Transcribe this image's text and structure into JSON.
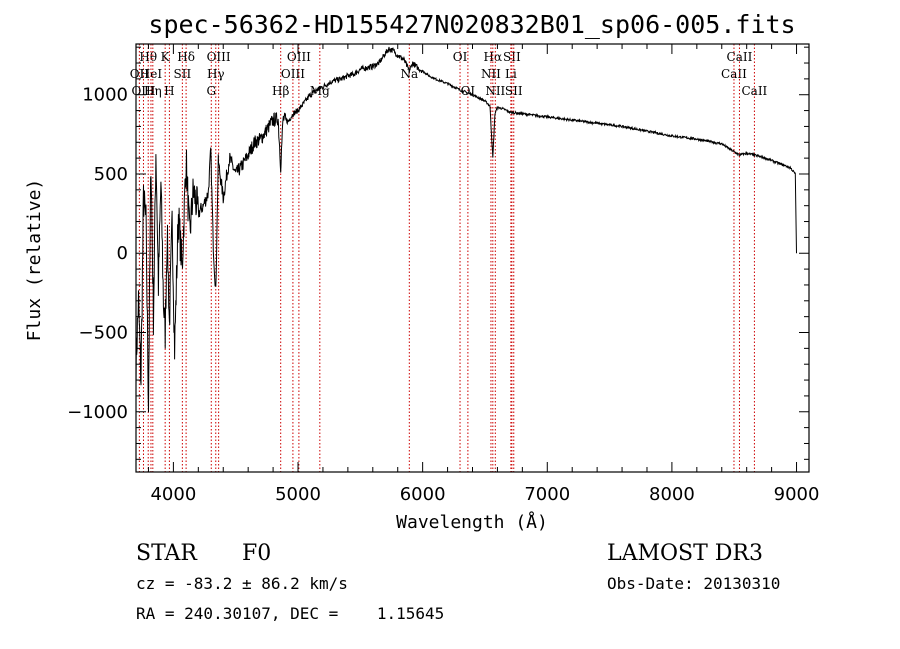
{
  "chart_data": {
    "type": "line",
    "title": "spec-56362-HD155427N020832B01_sp06-005.fits",
    "xlabel": "Wavelength (Å)",
    "ylabel": "Flux (relative)",
    "xlim": [
      3700,
      9100
    ],
    "ylim": [
      -1380,
      1320
    ],
    "xticks": [
      4000,
      5000,
      6000,
      7000,
      8000,
      9000
    ],
    "yticks": [
      -1000,
      -500,
      0,
      500,
      1000
    ],
    "spectrum_series": {
      "name": "flux",
      "x": [
        3700,
        3720,
        3740,
        3760,
        3780,
        3800,
        3820,
        3840,
        3860,
        3880,
        3900,
        3920,
        3934,
        3950,
        3968,
        3990,
        4010,
        4040,
        4070,
        4102,
        4130,
        4160,
        4200,
        4240,
        4280,
        4300,
        4320,
        4340,
        4360,
        4400,
        4450,
        4500,
        4550,
        4600,
        4650,
        4700,
        4750,
        4800,
        4840,
        4861,
        4880,
        4920,
        4960,
        5000,
        5050,
        5100,
        5150,
        5200,
        5260,
        5300,
        5350,
        5400,
        5450,
        5500,
        5550,
        5600,
        5650,
        5700,
        5730,
        5760,
        5800,
        5850,
        5893,
        5920,
        5960,
        6000,
        6050,
        6100,
        6200,
        6300,
        6400,
        6500,
        6540,
        6563,
        6580,
        6600,
        6650,
        6700,
        6800,
        6900,
        7000,
        7200,
        7400,
        7600,
        7800,
        8000,
        8200,
        8400,
        8498,
        8542,
        8600,
        8662,
        8750,
        8850,
        8950,
        8990,
        9000
      ],
      "values": [
        -700,
        -300,
        -800,
        350,
        200,
        -950,
        600,
        -400,
        650,
        -200,
        450,
        -300,
        -500,
        150,
        -450,
        200,
        -600,
        250,
        -100,
        600,
        100,
        400,
        250,
        300,
        380,
        650,
        50,
        -250,
        580,
        350,
        600,
        500,
        550,
        620,
        700,
        720,
        780,
        840,
        850,
        550,
        850,
        830,
        880,
        900,
        950,
        1000,
        1030,
        1050,
        1080,
        1090,
        1100,
        1120,
        1130,
        1160,
        1170,
        1180,
        1200,
        1260,
        1290,
        1280,
        1250,
        1220,
        1150,
        1200,
        1170,
        1150,
        1120,
        1100,
        1070,
        1030,
        1000,
        960,
        930,
        600,
        880,
        920,
        910,
        890,
        880,
        870,
        860,
        840,
        820,
        800,
        770,
        740,
        720,
        690,
        640,
        620,
        630,
        620,
        600,
        570,
        540,
        500,
        0
      ]
    },
    "line_markers": [
      {
        "name": "Hθ",
        "wl": 3798,
        "row": 0
      },
      {
        "name": "OII",
        "wl": 3727,
        "row": 1
      },
      {
        "name": "OIII",
        "wl": 3760,
        "row": 2
      },
      {
        "name": "HeI",
        "wl": 3820,
        "row": 1
      },
      {
        "name": "Hη",
        "wl": 3835,
        "row": 2
      },
      {
        "name": "K",
        "wl": 3934,
        "row": 0
      },
      {
        "name": "H",
        "wl": 3968,
        "row": 2
      },
      {
        "name": "SII",
        "wl": 4072,
        "row": 1
      },
      {
        "name": "Hδ",
        "wl": 4102,
        "row": 0
      },
      {
        "name": "OIII",
        "wl": 4363,
        "row": 0
      },
      {
        "name": "Hγ",
        "wl": 4340,
        "row": 1
      },
      {
        "name": "G",
        "wl": 4304,
        "row": 2
      },
      {
        "name": "Hβ",
        "wl": 4861,
        "row": 2
      },
      {
        "name": "OIII",
        "wl": 4959,
        "row": 1
      },
      {
        "name": "OIII",
        "wl": 5007,
        "row": 0
      },
      {
        "name": "Mg",
        "wl": 5175,
        "row": 2
      },
      {
        "name": "Na",
        "wl": 5893,
        "row": 1
      },
      {
        "name": "OI",
        "wl": 6300,
        "row": 0
      },
      {
        "name": "OI",
        "wl": 6363,
        "row": 2
      },
      {
        "name": "Hα",
        "wl": 6563,
        "row": 0
      },
      {
        "name": "NII",
        "wl": 6548,
        "row": 1
      },
      {
        "name": "NII",
        "wl": 6583,
        "row": 2
      },
      {
        "name": "SII",
        "wl": 6716,
        "row": 0
      },
      {
        "name": "Li",
        "wl": 6708,
        "row": 1
      },
      {
        "name": "SII",
        "wl": 6731,
        "row": 2
      },
      {
        "name": "CaII",
        "wl": 8498,
        "row": 1
      },
      {
        "name": "CaII",
        "wl": 8542,
        "row": 0
      },
      {
        "name": "CaII",
        "wl": 8662,
        "row": 2
      }
    ]
  },
  "info": {
    "object_class": "STAR",
    "subclass": "F0",
    "survey": "LAMOST DR3",
    "cz_line": "cz = -83.2 ± 86.2 km/s",
    "obs_date_line": "Obs-Date: 20130310",
    "radec_line": "RA = 240.30107, DEC =    1.15645"
  },
  "colors": {
    "axis": "#000000",
    "spectrum": "#000000",
    "line_marker": "#cc0000"
  }
}
